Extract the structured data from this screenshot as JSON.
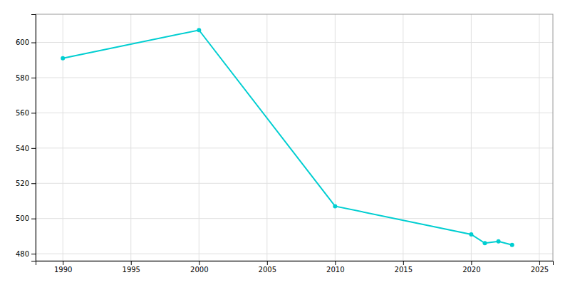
{
  "chart_data": {
    "type": "line",
    "x": [
      1990,
      2000,
      2010,
      2020,
      2021,
      2022,
      2023
    ],
    "values": [
      591,
      607,
      507,
      491,
      486,
      487,
      485
    ],
    "color": "#00CED1",
    "marker": "circle",
    "xlim": [
      1988,
      2026
    ],
    "ylim": [
      476,
      616
    ],
    "xticks": [
      1990,
      1995,
      2000,
      2005,
      2010,
      2015,
      2020,
      2025
    ],
    "yticks": [
      480,
      500,
      520,
      540,
      560,
      580,
      600
    ],
    "grid": true
  }
}
